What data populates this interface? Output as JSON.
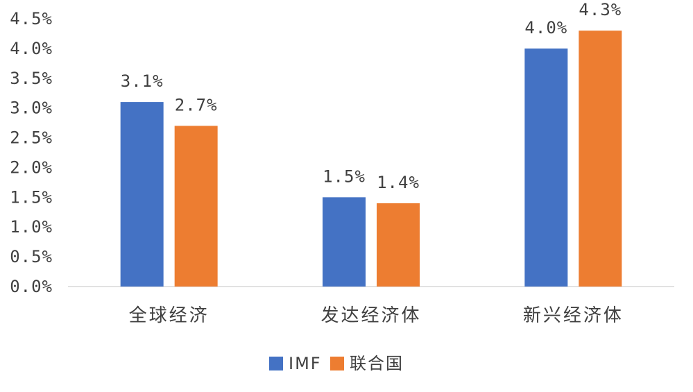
{
  "chart_data": {
    "type": "bar",
    "categories": [
      "全球经济",
      "发达经济体",
      "新兴经济体"
    ],
    "series": [
      {
        "name": "IMF",
        "values": [
          3.1,
          1.5,
          4.0
        ],
        "color": "#4472C4"
      },
      {
        "name": "联合国",
        "values": [
          2.7,
          1.4,
          4.3
        ],
        "color": "#ED7D31"
      }
    ],
    "y_ticks": [
      "0.0%",
      "0.5%",
      "1.0%",
      "1.5%",
      "2.0%",
      "2.5%",
      "3.0%",
      "3.5%",
      "4.0%",
      "4.5%"
    ],
    "data_labels": [
      [
        "3.1%",
        "1.5%",
        "4.0%"
      ],
      [
        "2.7%",
        "1.4%",
        "4.3%"
      ]
    ],
    "ylim": [
      0,
      4.5
    ],
    "y_unit": "%",
    "grid": false,
    "legend_position": "bottom",
    "title": "",
    "xlabel": "",
    "ylabel": ""
  }
}
